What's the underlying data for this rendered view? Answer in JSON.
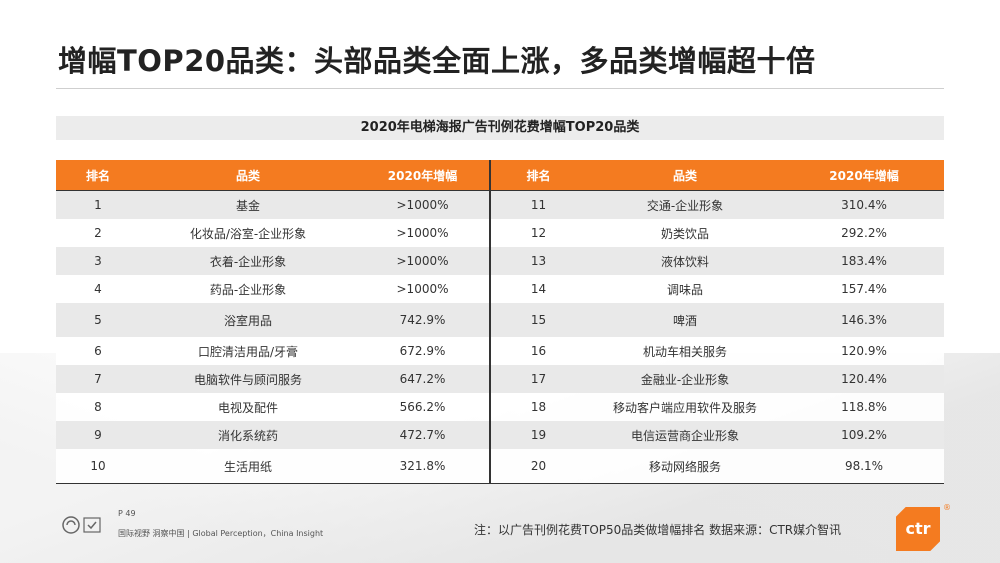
{
  "title": "增幅TOP20品类：头部品类全面上涨，多品类增幅超十倍",
  "subtitle": "2020年电梯海报广告刊例花费增幅TOP20品类",
  "table": {
    "headers": [
      "排名",
      "品类",
      "2020年增幅",
      "排名",
      "品类",
      "2020年增幅"
    ],
    "rows": [
      {
        "rank_l": "1",
        "cat_l": "基金",
        "pct_l": ">1000%",
        "rank_r": "11",
        "cat_r": "交通-企业形象",
        "pct_r": "310.4%"
      },
      {
        "rank_l": "2",
        "cat_l": "化妆品/浴室-企业形象",
        "pct_l": ">1000%",
        "rank_r": "12",
        "cat_r": "奶类饮品",
        "pct_r": "292.2%"
      },
      {
        "rank_l": "3",
        "cat_l": "衣着-企业形象",
        "pct_l": ">1000%",
        "rank_r": "13",
        "cat_r": "液体饮料",
        "pct_r": "183.4%"
      },
      {
        "rank_l": "4",
        "cat_l": "药品-企业形象",
        "pct_l": ">1000%",
        "rank_r": "14",
        "cat_r": "调味品",
        "pct_r": "157.4%"
      },
      {
        "rank_l": "5",
        "cat_l": "浴室用品",
        "pct_l": "742.9%",
        "rank_r": "15",
        "cat_r": "啤酒",
        "pct_r": "146.3%"
      },
      {
        "rank_l": "6",
        "cat_l": "口腔清洁用品/牙膏",
        "pct_l": "672.9%",
        "rank_r": "16",
        "cat_r": "机动车相关服务",
        "pct_r": "120.9%"
      },
      {
        "rank_l": "7",
        "cat_l": "电脑软件与顾问服务",
        "pct_l": "647.2%",
        "rank_r": "17",
        "cat_r": "金融业-企业形象",
        "pct_r": "120.4%"
      },
      {
        "rank_l": "8",
        "cat_l": "电视及配件",
        "pct_l": "566.2%",
        "rank_r": "18",
        "cat_r": "移动客户端应用软件及服务",
        "pct_r": "118.8%"
      },
      {
        "rank_l": "9",
        "cat_l": "消化系统药",
        "pct_l": "472.7%",
        "rank_r": "19",
        "cat_r": "电信运营商企业形象",
        "pct_r": "109.2%"
      },
      {
        "rank_l": "10",
        "cat_l": "生活用纸",
        "pct_l": "321.8%",
        "rank_r": "20",
        "cat_r": "移动网络服务",
        "pct_r": "98.1%"
      }
    ]
  },
  "footer": {
    "page": "P 49",
    "slogan": "国际视野  洞察中国 | Global Perception，China Insight",
    "note": "注：以广告刊例花费TOP50品类做增幅排名  数据来源：CTR媒介智讯",
    "logo_text": "ctr",
    "logo_mark": "®"
  },
  "colors": {
    "accent": "#f47b20",
    "alt_row": "#e9e9e9",
    "subtitle_bg": "#ececec"
  }
}
